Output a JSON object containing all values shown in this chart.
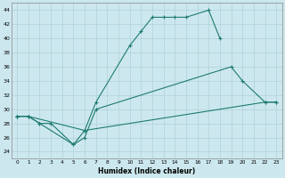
{
  "xlabel": "Humidex (Indice chaleur)",
  "bg_color": "#cce8ee",
  "line_color": "#1e7b6e",
  "grid_color": "#b0d0d8",
  "xlim": [
    -0.5,
    23.5
  ],
  "ylim": [
    23,
    45
  ],
  "yticks": [
    24,
    26,
    28,
    30,
    32,
    34,
    36,
    38,
    40,
    42,
    44
  ],
  "xticks": [
    0,
    1,
    2,
    3,
    4,
    5,
    6,
    7,
    8,
    9,
    10,
    11,
    12,
    13,
    14,
    15,
    16,
    17,
    18,
    19,
    20,
    21,
    22,
    23
  ],
  "s1_x": [
    0,
    1,
    2,
    5,
    6,
    7,
    10,
    11,
    12,
    13,
    14,
    15,
    17,
    18
  ],
  "s1_y": [
    29,
    29,
    28,
    25,
    27,
    31,
    39,
    41,
    43,
    43,
    43,
    43,
    44,
    40
  ],
  "s2_x": [
    0,
    1,
    2,
    3,
    5,
    6,
    7,
    19,
    20,
    22,
    23
  ],
  "s2_y": [
    29,
    29,
    28,
    28,
    25,
    26,
    30,
    36,
    34,
    31,
    31
  ],
  "s3_x": [
    0,
    1,
    6,
    22,
    23
  ],
  "s3_y": [
    29,
    29,
    27,
    31,
    31
  ]
}
